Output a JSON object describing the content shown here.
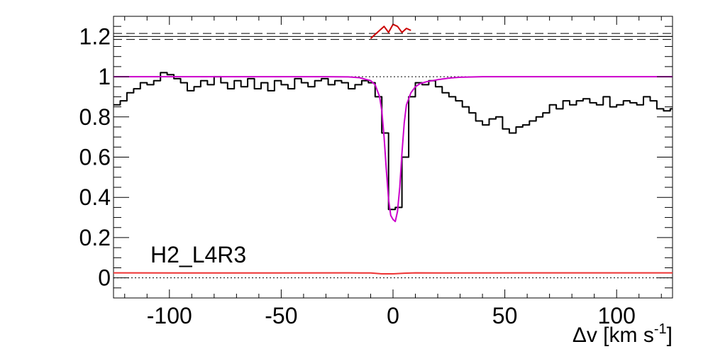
{
  "chart_data": {
    "type": "line",
    "title": "",
    "xlabel": "Δv [km s-1]",
    "xlabel_main": "Δv [km s",
    "xlabel_sup": "-1",
    "xlabel_end": "]",
    "ylabel": "",
    "xlim": [
      -125,
      125
    ],
    "ylim": [
      -0.1,
      1.3
    ],
    "x_ticks": [
      -100,
      -50,
      0,
      50,
      100
    ],
    "x_tick_labels": [
      "-100",
      "-50",
      "0",
      "50",
      "100"
    ],
    "y_ticks": [
      0,
      0.2,
      0.4,
      0.6,
      0.8,
      1,
      1.2
    ],
    "y_tick_labels": [
      "0",
      "0.2",
      "0.4",
      "0.6",
      "0.8",
      "1",
      "1.2"
    ],
    "annotation": "H2_L4R3",
    "grid": false,
    "series": [
      {
        "style": "step",
        "color": "#000000",
        "x": [
          -125,
          -122,
          -119,
          -116,
          -113,
          -110,
          -107,
          -104,
          -101,
          -98,
          -95,
          -92,
          -89,
          -86,
          -83,
          -80,
          -77,
          -74,
          -71,
          -68,
          -65,
          -62,
          -59,
          -56,
          -53,
          -50,
          -47,
          -44,
          -41,
          -38,
          -35,
          -32,
          -29,
          -26,
          -23,
          -20,
          -17,
          -14,
          -11,
          -8,
          -5,
          -2,
          1,
          4,
          7,
          10,
          13,
          16,
          19,
          22,
          25,
          28,
          31,
          34,
          37,
          40,
          43,
          46,
          49,
          52,
          55,
          58,
          61,
          64,
          67,
          70,
          73,
          76,
          79,
          82,
          85,
          88,
          91,
          94,
          97,
          100,
          103,
          106,
          109,
          112,
          115,
          118,
          121,
          124
        ],
        "y": [
          0.86,
          0.88,
          0.92,
          0.94,
          0.97,
          0.96,
          0.98,
          1.02,
          1.01,
          0.99,
          0.97,
          0.93,
          0.95,
          0.98,
          0.96,
          1.0,
          0.97,
          0.94,
          0.98,
          0.95,
          0.99,
          0.94,
          0.97,
          0.93,
          0.98,
          0.96,
          0.94,
          0.99,
          0.97,
          0.95,
          0.98,
          0.99,
          0.96,
          0.98,
          0.97,
          0.94,
          0.96,
          0.98,
          0.97,
          0.9,
          0.72,
          0.34,
          0.35,
          0.6,
          0.9,
          0.97,
          0.96,
          0.98,
          0.95,
          0.92,
          0.9,
          0.88,
          0.85,
          0.82,
          0.78,
          0.76,
          0.79,
          0.8,
          0.74,
          0.72,
          0.75,
          0.76,
          0.78,
          0.8,
          0.82,
          0.86,
          0.84,
          0.88,
          0.86,
          0.88,
          0.89,
          0.87,
          0.86,
          0.9,
          0.85,
          0.86,
          0.88,
          0.87,
          0.86,
          0.9,
          0.88,
          0.84,
          0.83,
          0.84
        ]
      },
      {
        "style": "line",
        "color": "#cc00cc",
        "x": [
          -125,
          -30,
          -20,
          -15,
          -10,
          -8,
          -6,
          -5,
          -4,
          -3,
          -2,
          -1,
          0,
          1,
          2,
          3,
          4,
          5,
          6,
          8,
          10,
          12,
          15,
          20,
          25,
          30,
          40,
          60,
          125
        ],
        "y": [
          1.0,
          1.0,
          0.999,
          0.995,
          0.98,
          0.96,
          0.9,
          0.83,
          0.7,
          0.54,
          0.39,
          0.31,
          0.29,
          0.28,
          0.33,
          0.45,
          0.62,
          0.77,
          0.86,
          0.92,
          0.95,
          0.965,
          0.975,
          0.985,
          0.993,
          0.997,
          1.0,
          1.0,
          1.0
        ]
      },
      {
        "style": "line",
        "color": "#ee3333",
        "x": [
          -125,
          -60,
          -20,
          -10,
          -5,
          0,
          5,
          10,
          20,
          60,
          125
        ],
        "y": [
          0.025,
          0.024,
          0.025,
          0.024,
          0.02,
          0.02,
          0.023,
          0.025,
          0.024,
          0.025,
          0.025
        ]
      },
      {
        "style": "line",
        "color": "#cc0000",
        "x": [
          -10,
          -8,
          -6,
          -4,
          -2,
          0,
          2,
          4,
          6,
          8
        ],
        "y": [
          1.19,
          1.21,
          1.23,
          1.25,
          1.22,
          1.26,
          1.25,
          1.22,
          1.24,
          1.23
        ]
      }
    ],
    "reference_lines": [
      {
        "y": 1.0,
        "style": "dotted"
      },
      {
        "y": 0.0,
        "style": "dotted"
      },
      {
        "y": 1.185,
        "style": "dashed"
      },
      {
        "y": 1.2,
        "style": "solid"
      },
      {
        "y": 1.215,
        "style": "dashed"
      }
    ]
  }
}
